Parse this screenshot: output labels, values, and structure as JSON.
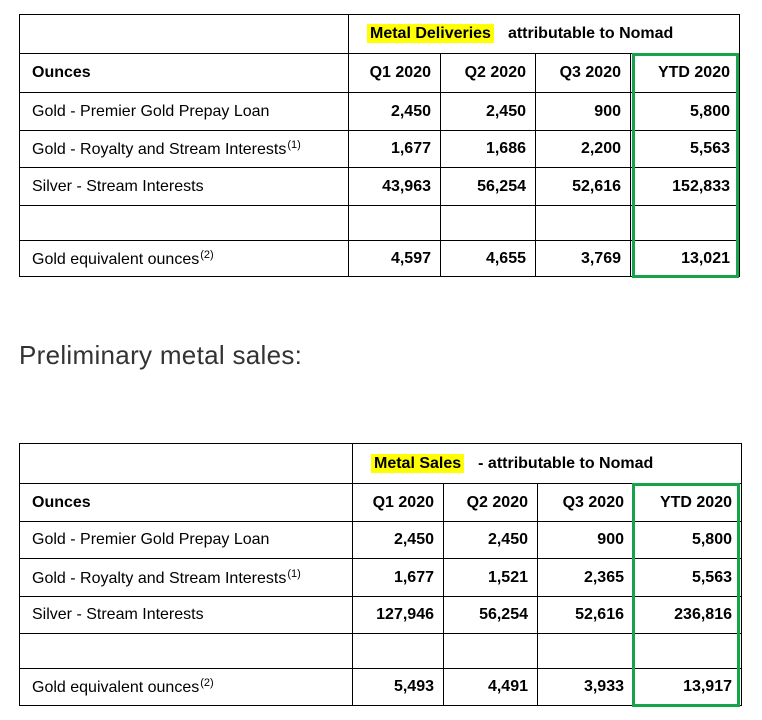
{
  "tables": [
    {
      "heading_highlight": "Metal Deliveries",
      "heading_rest": "attributable to Nomad",
      "columns": [
        "Ounces",
        "Q1 2020",
        "Q2 2020",
        "Q3 2020",
        "YTD 2020"
      ],
      "rows": [
        {
          "label": "Gold - Premier Gold Prepay Loan",
          "values": [
            "2,450",
            "2,450",
            "900",
            "5,800"
          ]
        },
        {
          "label": "Gold - Royalty and Stream Interests",
          "note": "(1)",
          "values": [
            "1,677",
            "1,686",
            "2,200",
            "5,563"
          ]
        },
        {
          "label": "Silver - Stream Interests",
          "values": [
            "43,963",
            "56,254",
            "52,616",
            "152,833"
          ]
        },
        {
          "label": "Gold equivalent ounces",
          "note": "(2)",
          "values": [
            "4,597",
            "4,655",
            "3,769",
            "13,021"
          ]
        }
      ]
    },
    {
      "heading_highlight": "Metal Sales",
      "heading_rest": "- attributable to Nomad",
      "columns": [
        "Ounces",
        "Q1 2020",
        "Q2 2020",
        "Q3 2020",
        "YTD 2020"
      ],
      "rows": [
        {
          "label": "Gold - Premier Gold Prepay Loan",
          "values": [
            "2,450",
            "2,450",
            "900",
            "5,800"
          ]
        },
        {
          "label": "Gold - Royalty and Stream Interests",
          "note": "(1)",
          "values": [
            "1,677",
            "1,521",
            "2,365",
            "5,563"
          ]
        },
        {
          "label": "Silver - Stream Interests",
          "values": [
            "127,946",
            "56,254",
            "52,616",
            "236,816"
          ]
        },
        {
          "label": "Gold equivalent ounces",
          "note": "(2)",
          "values": [
            "5,493",
            "4,491",
            "3,933",
            "13,917"
          ]
        }
      ]
    }
  ],
  "section_title": "Preliminary metal sales:"
}
